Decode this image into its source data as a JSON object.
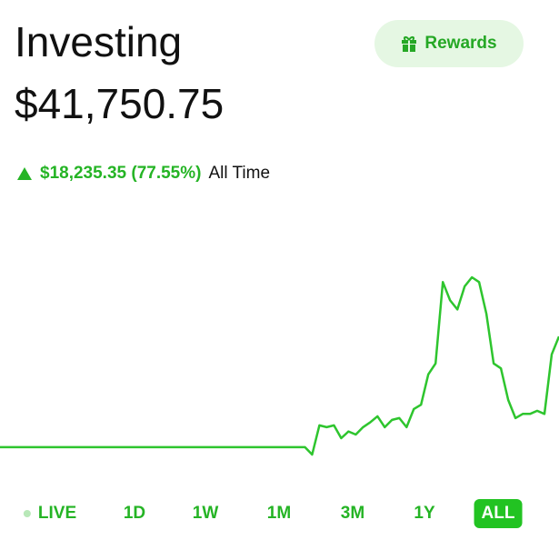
{
  "header": {
    "title": "Investing",
    "value": "$41,750.75",
    "rewards": "Rewards"
  },
  "change": {
    "amount": "$18,235.35 (77.55%)",
    "period": "All Time"
  },
  "ranges": [
    "LIVE",
    "1D",
    "1W",
    "1M",
    "3M",
    "1Y",
    "ALL"
  ],
  "selected_range": "ALL",
  "chart_data": {
    "type": "line",
    "color": "#2ec52e",
    "values": [
      23515.4,
      23515.4,
      23515.4,
      23515.4,
      23515.4,
      23515.4,
      23515.4,
      23515.4,
      23515.4,
      23515.4,
      23515.4,
      23515.4,
      23515.4,
      23515.4,
      23515.4,
      23515.4,
      23515.4,
      23515.4,
      23515.4,
      23515.4,
      23515.4,
      23515.4,
      23515.4,
      23515.4,
      23515.4,
      23515.4,
      23515.4,
      23515.4,
      23515.4,
      23515.4,
      23515.4,
      23515.4,
      23515.4,
      23515.4,
      23515.4,
      23515.4,
      23515.4,
      23515.4,
      23515.4,
      23515.4,
      23515.4,
      23515.4,
      23515.4,
      22300,
      27100,
      26800,
      27100,
      25000,
      26100,
      25600,
      26800,
      27600,
      28600,
      26800,
      28000,
      28300,
      26800,
      29800,
      30500,
      35500,
      37300,
      50700,
      47700,
      46200,
      50000,
      51500,
      50700,
      45500,
      37300,
      36500,
      31300,
      28300,
      29000,
      29000,
      29500,
      29000,
      38800,
      41750.75
    ]
  }
}
